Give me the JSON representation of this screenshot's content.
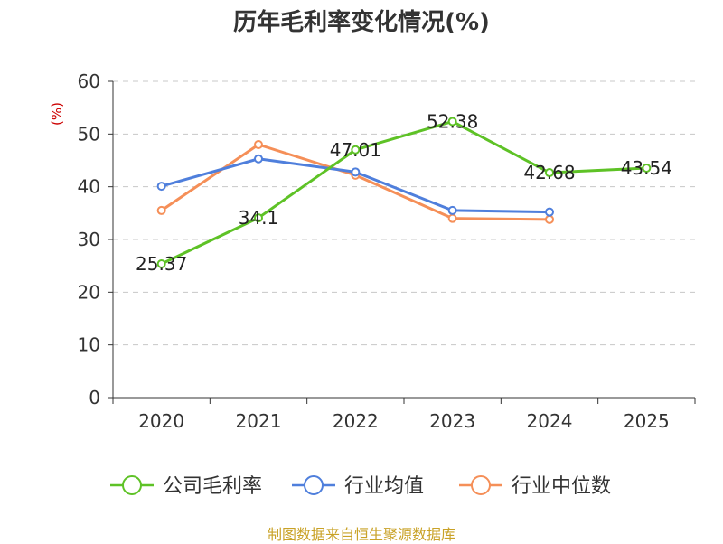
{
  "title": "历年毛利率变化情况(%)",
  "source": "制图数据来自恒生聚源数据库",
  "chart_data": {
    "type": "line",
    "title": "历年毛利率变化情况(%)",
    "ylabel": "(%)",
    "xlabel": "",
    "ylim": [
      0,
      60
    ],
    "yticks": [
      0,
      10,
      20,
      30,
      40,
      50,
      60
    ],
    "categories": [
      "2020",
      "2021",
      "2022",
      "2023",
      "2024",
      "2025"
    ],
    "grid": true,
    "legend_position": "bottom",
    "series": [
      {
        "name": "公司毛利率",
        "color": "#5ec226",
        "values": [
          25.37,
          34.1,
          47.01,
          52.38,
          42.68,
          43.54
        ],
        "labels": [
          "25.37",
          "34.1",
          "47.01",
          "52.38",
          "42.68",
          "43.54"
        ]
      },
      {
        "name": "行业均值",
        "color": "#4f7fdc",
        "values": [
          40.1,
          45.3,
          42.8,
          35.5,
          35.2,
          null
        ],
        "labels": []
      },
      {
        "name": "行业中位数",
        "color": "#f58f58",
        "values": [
          35.5,
          48.0,
          42.2,
          34.0,
          33.8,
          null
        ],
        "labels": []
      }
    ]
  }
}
